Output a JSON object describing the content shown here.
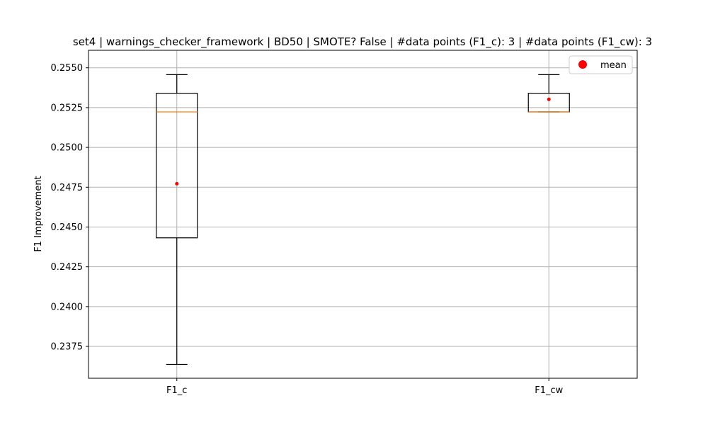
{
  "chart_data": {
    "type": "box",
    "title": "set4 | warnings_checker_framework | BD50 | SMOTE? False | #data points (F1_c): 3 | #data points (F1_cw): 3",
    "xlabel": "",
    "ylabel": "F1 Improvement",
    "ylim": [
      0.2355,
      0.2561
    ],
    "yticks": [
      0.2375,
      0.24,
      0.2425,
      0.245,
      0.2475,
      0.25,
      0.2525,
      0.255
    ],
    "ytick_labels": [
      "0.2375",
      "0.2400",
      "0.2425",
      "0.2450",
      "0.2475",
      "0.2500",
      "0.2525",
      "0.2550"
    ],
    "categories": [
      "F1_c",
      "F1_cw"
    ],
    "boxes": [
      {
        "label": "F1_c",
        "whisker_low": 0.23637,
        "q1": 0.24432,
        "median": 0.25223,
        "q3": 0.2534,
        "whisker_high": 0.25457,
        "mean": 0.24772
      },
      {
        "label": "F1_cw",
        "whisker_low": 0.25223,
        "q1": 0.25223,
        "median": 0.25223,
        "q3": 0.2534,
        "whisker_high": 0.25457,
        "mean": 0.25302
      }
    ],
    "grid": true,
    "legend": {
      "placement": "top-right",
      "entries": [
        {
          "label": "mean",
          "color": "#ff0000",
          "marker": "circle"
        }
      ]
    },
    "colors": {
      "box": "#000000",
      "median": "#ff7f0e",
      "mean": "#ff0000",
      "grid": "#b0b0b0"
    }
  }
}
